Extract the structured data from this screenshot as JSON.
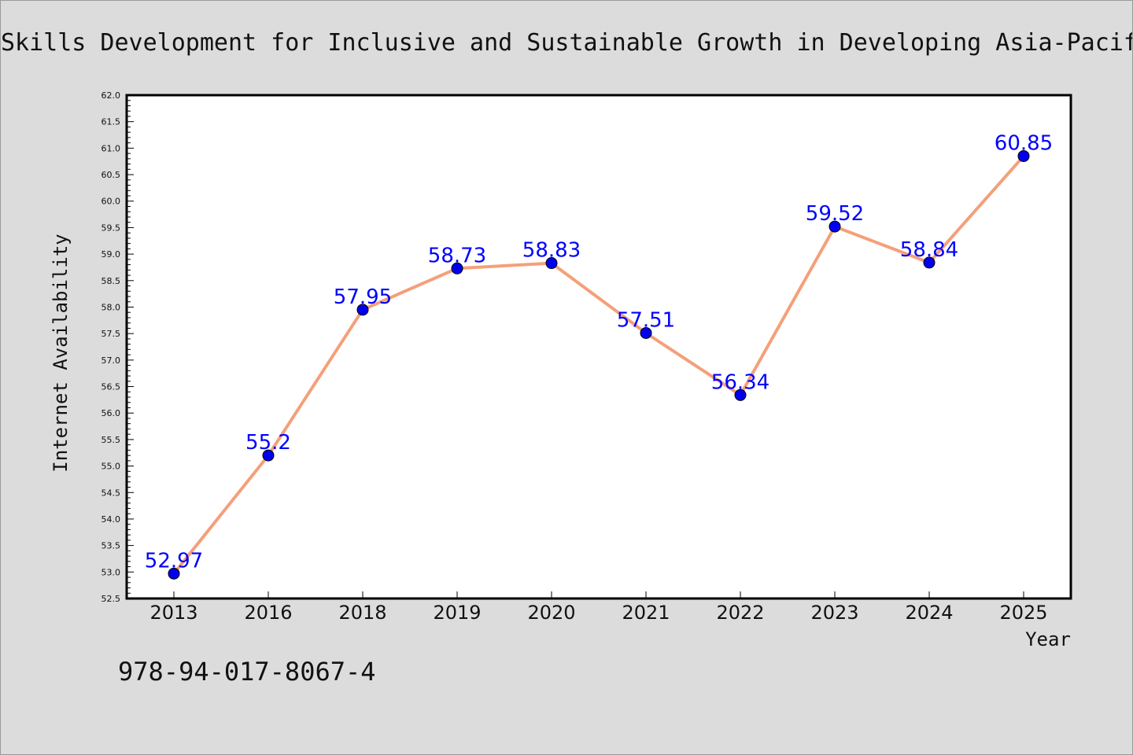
{
  "chart_data": {
    "type": "line",
    "title": "Skills Development for Inclusive and Sustainable Growth in Developing Asia-Pacific",
    "xlabel": "Year",
    "ylabel": "Internet Availability",
    "categories": [
      "2013",
      "2016",
      "2018",
      "2019",
      "2020",
      "2021",
      "2022",
      "2023",
      "2024",
      "2025"
    ],
    "series": [
      {
        "values": [
          52.97,
          55.2,
          57.95,
          58.73,
          58.83,
          57.51,
          56.34,
          59.52,
          58.84,
          60.85
        ],
        "data_labels": [
          "52.97",
          "55.2",
          "57.95",
          "58.73",
          "58.83",
          "57.51",
          "56.34",
          "59.52",
          "58.84",
          "60.85"
        ],
        "line_color": "#f4a07a",
        "marker_color": "#0000ee"
      }
    ],
    "ylim": [
      52.5,
      62.0
    ],
    "yticks": [
      "52.5",
      "53.0",
      "53.5",
      "54.0",
      "54.5",
      "55.0",
      "55.5",
      "56.0",
      "56.5",
      "57.0",
      "57.5",
      "58.0",
      "58.5",
      "59.0",
      "59.5",
      "60.0",
      "60.5",
      "61.0",
      "61.5",
      "62.0"
    ],
    "grid": false,
    "legend": "none"
  },
  "footnote": "978-94-017-8067-4",
  "colors": {
    "background": "#dcdcdc",
    "plot_background": "#ffffff",
    "label_color": "#0000ff"
  }
}
